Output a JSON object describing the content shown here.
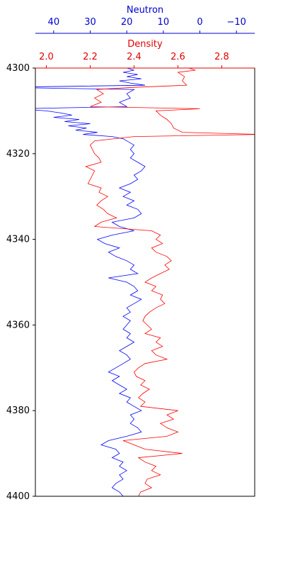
{
  "chart_data": {
    "type": "line",
    "orientation": "vertical-depth-log",
    "y_axis": {
      "label": "",
      "lim": [
        4300,
        4400
      ],
      "inverted": true,
      "ticks": [
        4300,
        4320,
        4340,
        4360,
        4380,
        4400
      ]
    },
    "neutron_axis": {
      "label": "Neutron",
      "lim": [
        45,
        -15
      ],
      "ticks": [
        40,
        30,
        20,
        10,
        0,
        -10
      ],
      "tick_labels": [
        "40",
        "30",
        "20",
        "10",
        "0",
        "−10"
      ],
      "color": "#0000cc"
    },
    "density_axis": {
      "label": "Density",
      "lim": [
        1.95,
        2.95
      ],
      "ticks": [
        2.0,
        2.2,
        2.4,
        2.6,
        2.8
      ],
      "tick_labels": [
        "2.0",
        "2.2",
        "2.4",
        "2.6",
        "2.8"
      ],
      "color": "#e00000"
    },
    "series": [
      {
        "name": "Neutron",
        "color": "#0000ff",
        "axis": "neutron",
        "points": [
          [
            4300.0,
            20
          ],
          [
            4300.5,
            18
          ],
          [
            4301,
            21
          ],
          [
            4301.5,
            17
          ],
          [
            4302,
            20
          ],
          [
            4302.5,
            16
          ],
          [
            4303,
            22
          ],
          [
            4303.5,
            19
          ],
          [
            4304,
            15
          ],
          [
            4304.5,
            55
          ],
          [
            4305,
            18
          ],
          [
            4306,
            20
          ],
          [
            4307,
            19
          ],
          [
            4308,
            22
          ],
          [
            4309,
            20
          ],
          [
            4309.5,
            50
          ],
          [
            4310,
            42
          ],
          [
            4310.5,
            38
          ],
          [
            4311,
            35
          ],
          [
            4311.5,
            40
          ],
          [
            4312,
            33
          ],
          [
            4312.5,
            37
          ],
          [
            4313,
            30
          ],
          [
            4313.5,
            36
          ],
          [
            4314,
            31
          ],
          [
            4314.5,
            34
          ],
          [
            4315,
            28
          ],
          [
            4315.5,
            32
          ],
          [
            4316,
            24
          ],
          [
            4316.5,
            21
          ],
          [
            4317,
            20
          ],
          [
            4318,
            18
          ],
          [
            4319,
            19
          ],
          [
            4320,
            18
          ],
          [
            4321,
            19
          ],
          [
            4322,
            17
          ],
          [
            4323,
            15
          ],
          [
            4324,
            16
          ],
          [
            4325,
            18
          ],
          [
            4326,
            17
          ],
          [
            4327,
            19
          ],
          [
            4328,
            22
          ],
          [
            4329,
            19
          ],
          [
            4330,
            21
          ],
          [
            4331,
            18
          ],
          [
            4332,
            20
          ],
          [
            4333,
            17
          ],
          [
            4334,
            16
          ],
          [
            4335,
            18
          ],
          [
            4336,
            24
          ],
          [
            4337,
            22
          ],
          [
            4338,
            18
          ],
          [
            4339,
            24
          ],
          [
            4340,
            28
          ],
          [
            4341,
            26
          ],
          [
            4342,
            22
          ],
          [
            4343,
            25
          ],
          [
            4344,
            23
          ],
          [
            4345,
            20
          ],
          [
            4346,
            18
          ],
          [
            4347,
            19
          ],
          [
            4348,
            17
          ],
          [
            4349,
            25
          ],
          [
            4350,
            20
          ],
          [
            4351,
            18
          ],
          [
            4352,
            17
          ],
          [
            4353,
            19
          ],
          [
            4354,
            16
          ],
          [
            4355,
            18
          ],
          [
            4356,
            20
          ],
          [
            4357,
            19
          ],
          [
            4358,
            21
          ],
          [
            4359,
            19
          ],
          [
            4360,
            20
          ],
          [
            4361,
            21
          ],
          [
            4362,
            19
          ],
          [
            4363,
            20
          ],
          [
            4364,
            18
          ],
          [
            4365,
            20
          ],
          [
            4366,
            22
          ],
          [
            4367,
            20
          ],
          [
            4368,
            19
          ],
          [
            4369,
            21
          ],
          [
            4370,
            23
          ],
          [
            4371,
            25
          ],
          [
            4372,
            22
          ],
          [
            4373,
            24
          ],
          [
            4374,
            22
          ],
          [
            4375,
            20
          ],
          [
            4376,
            22
          ],
          [
            4377,
            19
          ],
          [
            4378,
            20
          ],
          [
            4379,
            18
          ],
          [
            4380,
            16
          ],
          [
            4381,
            19
          ],
          [
            4382,
            18
          ],
          [
            4383,
            19
          ],
          [
            4384,
            17
          ],
          [
            4385,
            16
          ],
          [
            4386,
            20
          ],
          [
            4387,
            25
          ],
          [
            4388,
            27
          ],
          [
            4389,
            23
          ],
          [
            4390,
            22
          ],
          [
            4391,
            24
          ],
          [
            4392,
            21
          ],
          [
            4393,
            22
          ],
          [
            4394,
            20
          ],
          [
            4395,
            22
          ],
          [
            4396,
            21
          ],
          [
            4397,
            23
          ],
          [
            4398,
            24
          ],
          [
            4399,
            22
          ],
          [
            4400,
            21
          ]
        ]
      },
      {
        "name": "Density",
        "color": "#ff0000",
        "axis": "density",
        "points": [
          [
            4300.0,
            2.65
          ],
          [
            4300.5,
            2.68
          ],
          [
            4301,
            2.6
          ],
          [
            4302,
            2.63
          ],
          [
            4303,
            2.62
          ],
          [
            4304,
            2.64
          ],
          [
            4304.5,
            2.4
          ],
          [
            4305,
            2.23
          ],
          [
            4306,
            2.26
          ],
          [
            4307,
            2.22
          ],
          [
            4308,
            2.25
          ],
          [
            4309,
            2.2
          ],
          [
            4309.5,
            2.7
          ],
          [
            4310,
            2.5
          ],
          [
            4311,
            2.52
          ],
          [
            4312,
            2.55
          ],
          [
            4313,
            2.57
          ],
          [
            4314,
            2.58
          ],
          [
            4315,
            2.62
          ],
          [
            4315.5,
            2.98
          ],
          [
            4316,
            2.4
          ],
          [
            4317,
            2.22
          ],
          [
            4318,
            2.2
          ],
          [
            4319,
            2.21
          ],
          [
            4320,
            2.22
          ],
          [
            4321,
            2.24
          ],
          [
            4322,
            2.25
          ],
          [
            4323,
            2.18
          ],
          [
            4324,
            2.22
          ],
          [
            4325,
            2.21
          ],
          [
            4326,
            2.2
          ],
          [
            4327,
            2.19
          ],
          [
            4328,
            2.25
          ],
          [
            4329,
            2.24
          ],
          [
            4330,
            2.28
          ],
          [
            4331,
            2.25
          ],
          [
            4332,
            2.23
          ],
          [
            4333,
            2.26
          ],
          [
            4334,
            2.28
          ],
          [
            4335,
            2.32
          ],
          [
            4336,
            2.25
          ],
          [
            4337,
            2.22
          ],
          [
            4338,
            2.48
          ],
          [
            4339,
            2.52
          ],
          [
            4340,
            2.5
          ],
          [
            4341,
            2.53
          ],
          [
            4342,
            2.48
          ],
          [
            4343,
            2.5
          ],
          [
            4344,
            2.55
          ],
          [
            4345,
            2.57
          ],
          [
            4346,
            2.54
          ],
          [
            4347,
            2.56
          ],
          [
            4348,
            2.52
          ],
          [
            4349,
            2.48
          ],
          [
            4350,
            2.45
          ],
          [
            4351,
            2.5
          ],
          [
            4352,
            2.48
          ],
          [
            4353,
            2.53
          ],
          [
            4354,
            2.52
          ],
          [
            4355,
            2.54
          ],
          [
            4356,
            2.5
          ],
          [
            4357,
            2.47
          ],
          [
            4358,
            2.45
          ],
          [
            4359,
            2.44
          ],
          [
            4360,
            2.46
          ],
          [
            4361,
            2.48
          ],
          [
            4362,
            2.45
          ],
          [
            4363,
            2.52
          ],
          [
            4364,
            2.5
          ],
          [
            4365,
            2.53
          ],
          [
            4366,
            2.48
          ],
          [
            4367,
            2.5
          ],
          [
            4368,
            2.55
          ],
          [
            4369,
            2.45
          ],
          [
            4370,
            2.42
          ],
          [
            4371,
            2.4
          ],
          [
            4372,
            2.41
          ],
          [
            4373,
            2.45
          ],
          [
            4374,
            2.43
          ],
          [
            4375,
            2.47
          ],
          [
            4376,
            2.44
          ],
          [
            4377,
            2.42
          ],
          [
            4378,
            2.45
          ],
          [
            4379,
            2.43
          ],
          [
            4380,
            2.6
          ],
          [
            4381,
            2.55
          ],
          [
            4382,
            2.58
          ],
          [
            4383,
            2.52
          ],
          [
            4384,
            2.55
          ],
          [
            4385,
            2.6
          ],
          [
            4386,
            2.55
          ],
          [
            4387,
            2.35
          ],
          [
            4388,
            2.4
          ],
          [
            4389,
            2.45
          ],
          [
            4390,
            2.62
          ],
          [
            4391,
            2.42
          ],
          [
            4392,
            2.45
          ],
          [
            4393,
            2.5
          ],
          [
            4394,
            2.48
          ],
          [
            4395,
            2.52
          ],
          [
            4396,
            2.46
          ],
          [
            4397,
            2.45
          ],
          [
            4398,
            2.48
          ],
          [
            4399,
            2.43
          ],
          [
            4400,
            2.42
          ]
        ]
      }
    ],
    "grid": false
  }
}
